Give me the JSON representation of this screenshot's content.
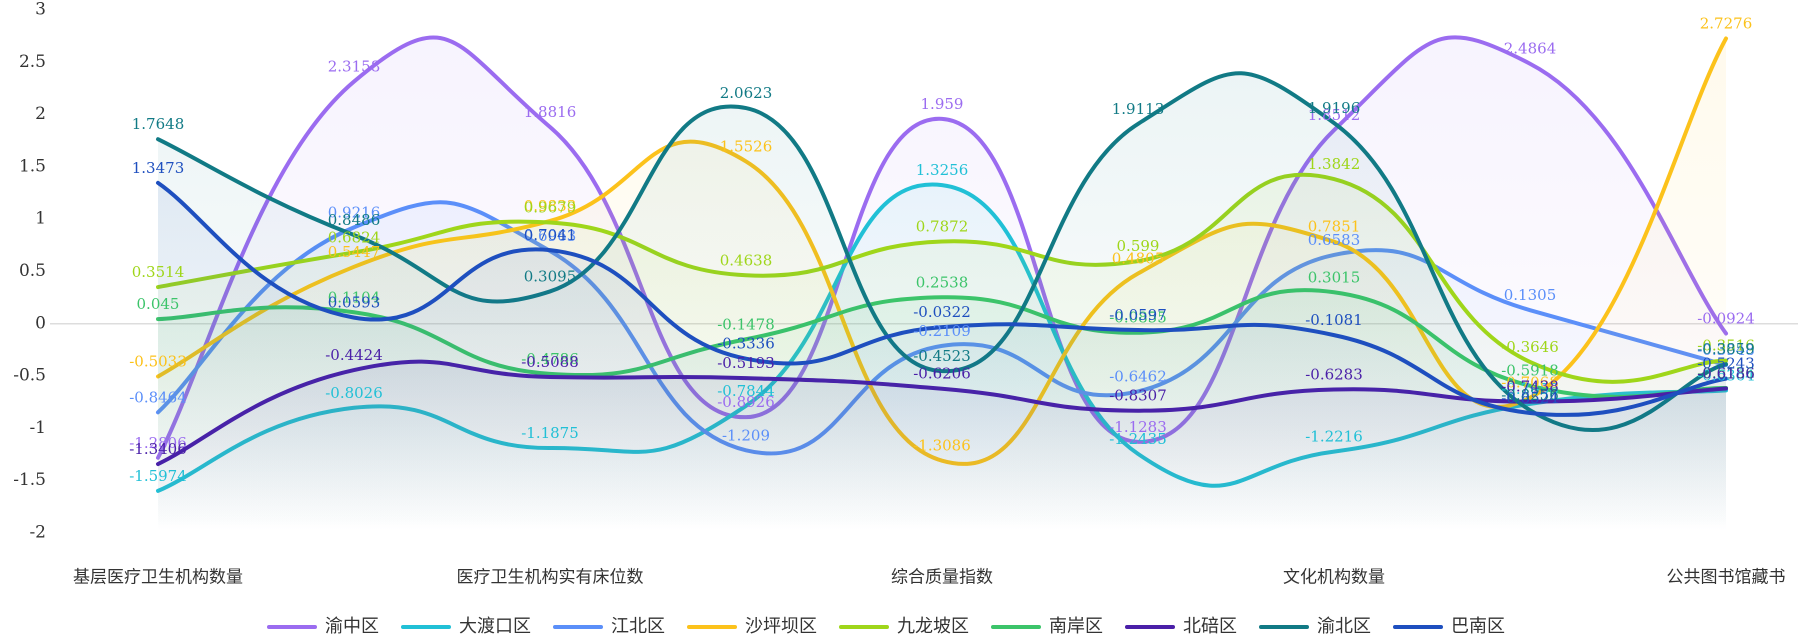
{
  "chart_data": {
    "type": "line",
    "categories": [
      "基层医疗卫生机构数量",
      null,
      "医疗卫生机构实有床位数",
      null,
      "综合质量指数",
      null,
      "文化机构数量",
      null,
      "公共图书馆藏书"
    ],
    "ylim": [
      -2,
      3
    ],
    "yticks": [
      -2,
      -1.5,
      -1,
      -0.5,
      0,
      0.5,
      1,
      1.5,
      2,
      2.5,
      3
    ],
    "grid": false,
    "legend": "bottom",
    "series": [
      {
        "name": "渝中区",
        "color": "#9b6cf0",
        "values": [
          -1.2806,
          2.3158,
          1.8816,
          -0.8926,
          1.959,
          -1.1283,
          1.8512,
          2.4864,
          -0.0924
        ]
      },
      {
        "name": "大渡口区",
        "color": "#21c0d6",
        "values": [
          -1.5974,
          -0.8026,
          -1.1875,
          -0.7844,
          1.3256,
          -1.2435,
          -1.2216,
          -0.7658,
          -0.6364
        ]
      },
      {
        "name": "江北区",
        "color": "#5b8ff9",
        "values": [
          -0.8464,
          0.9216,
          0.6963,
          -1.209,
          -0.2109,
          -0.6462,
          0.6583,
          0.1305,
          -0.3948
        ]
      },
      {
        "name": "沙坪坝区",
        "color": "#fcc21b",
        "values": [
          -0.5033,
          0.5447,
          0.9833,
          1.5526,
          -1.3086,
          0.4805,
          0.7851,
          -0.7068,
          2.7276
        ]
      },
      {
        "name": "九龙坡区",
        "color": "#9fd61a",
        "values": [
          0.3514,
          0.6824,
          0.9679,
          0.4638,
          0.7872,
          0.599,
          1.3842,
          -0.3646,
          -0.3516
        ]
      },
      {
        "name": "南岸区",
        "color": "#3cc46a",
        "values": [
          0.045,
          0.1104,
          -0.4786,
          -0.1478,
          0.2538,
          -0.0855,
          0.3015,
          -0.5918,
          -0.6136
        ]
      },
      {
        "name": "北碚区",
        "color": "#4a1fa8",
        "values": [
          -1.3406,
          -0.4424,
          -0.5088,
          -0.5193,
          -0.6206,
          -0.8307,
          -0.6283,
          -0.7438,
          -0.6186
        ]
      },
      {
        "name": "渝北区",
        "color": "#117a85",
        "values": [
          1.7648,
          0.8486,
          0.3095,
          2.0623,
          -0.4523,
          1.9113,
          1.9196,
          -0.8256,
          -0.3859
        ]
      },
      {
        "name": "巴南区",
        "color": "#1e4fbf",
        "values": [
          1.3473,
          0.0593,
          0.7041,
          -0.3336,
          -0.0322,
          -0.0597,
          -0.1081,
          -0.8524,
          -0.5243
        ]
      }
    ]
  }
}
